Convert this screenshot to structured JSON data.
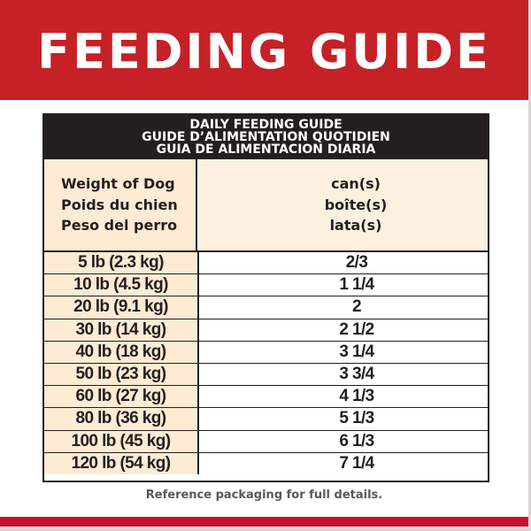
{
  "banner": {
    "title": "FEEDING GUIDE",
    "color": "#c62127"
  },
  "table": {
    "title_lines": [
      "DAILY FEEDING GUIDE",
      "GUIDE D’ALIMENTATION QUOTIDIEN",
      "GUIA DE ALIMENTACION DIARIA"
    ],
    "column_headers": {
      "weight": [
        "Weight of Dog",
        "Poids du chien",
        "Peso del perro"
      ],
      "amount": [
        "can(s)",
        "boîte(s)",
        "lata(s)"
      ]
    },
    "rows": [
      {
        "weight": "5 lb (2.3 kg)",
        "amount": "2/3"
      },
      {
        "weight": "10 lb (4.5 kg)",
        "amount": "1 1/4"
      },
      {
        "weight": "20 lb (9.1 kg)",
        "amount": "2"
      },
      {
        "weight": "30 lb (14 kg)",
        "amount": "2 1/2"
      },
      {
        "weight": "40 lb (18 kg)",
        "amount": "3 1/4"
      },
      {
        "weight": "50 lb (23 kg)",
        "amount": "3 3/4"
      },
      {
        "weight": "60 lb (27 kg)",
        "amount": "4 1/3"
      },
      {
        "weight": "80 lb (36 kg)",
        "amount": "5 1/3"
      },
      {
        "weight": "100 lb (45 kg)",
        "amount": "6 1/3"
      },
      {
        "weight": "120 lb (54 kg)",
        "amount": "7 1/4"
      }
    ]
  },
  "footer": {
    "note": "Reference packaging for full details."
  }
}
